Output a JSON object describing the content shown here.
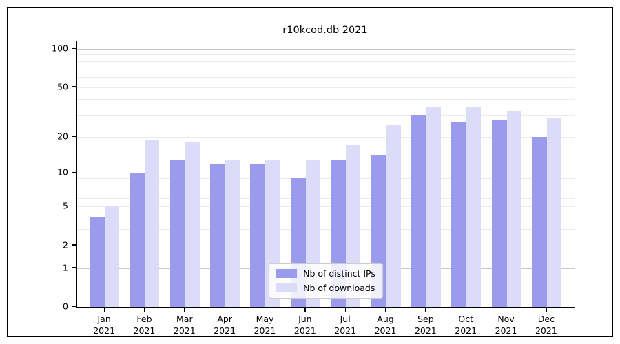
{
  "figure": {
    "title": "r10kcod.db 2021"
  },
  "chart_data": {
    "type": "bar",
    "title": "r10kcod.db 2021",
    "categories": [
      "Jan",
      "Feb",
      "Mar",
      "Apr",
      "May",
      "Jun",
      "Jul",
      "Aug",
      "Sep",
      "Oct",
      "Nov",
      "Dec"
    ],
    "category_year": "2021",
    "series": [
      {
        "name": "Nb of distinct IPs",
        "color": "#9b9bee",
        "values": [
          4,
          10,
          13,
          12,
          12,
          9,
          13,
          14,
          30,
          26,
          27,
          20
        ]
      },
      {
        "name": "Nb of downloads",
        "color": "#dcdcf9",
        "values": [
          5,
          19,
          18,
          13,
          13,
          13,
          17,
          25,
          35,
          35,
          32,
          28
        ]
      }
    ],
    "xlabel": "",
    "ylabel": "",
    "y_axis": {
      "scale": "log10(value+1)",
      "tick_labels": [
        "0",
        "1",
        "2",
        "5",
        "10",
        "20",
        "50",
        "100"
      ],
      "tick_values": [
        0,
        1,
        2,
        5,
        10,
        20,
        50,
        100
      ],
      "major_gridline_values": [
        1,
        10,
        100
      ],
      "minor_gridline_values": [
        2,
        3,
        4,
        5,
        6,
        7,
        8,
        9,
        20,
        30,
        40,
        50,
        60,
        70,
        80,
        90
      ],
      "range_top_value": 100
    },
    "legend": {
      "position": "lower center",
      "entries": [
        "Nb of distinct IPs",
        "Nb of downloads"
      ]
    },
    "grid": true
  }
}
